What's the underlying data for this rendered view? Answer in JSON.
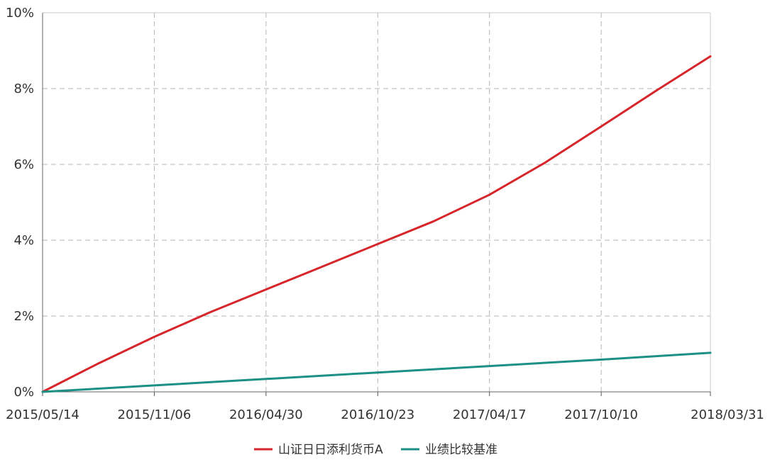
{
  "chart_data": {
    "type": "line",
    "title": "",
    "xlabel": "",
    "ylabel": "",
    "x_tick_labels": [
      "2015/05/14",
      "2015/11/06",
      "2016/04/30",
      "2016/10/23",
      "2017/04/17",
      "2017/10/10",
      "2018/03/31"
    ],
    "y_tick_labels": [
      "0%",
      "2%",
      "4%",
      "6%",
      "8%",
      "10%"
    ],
    "ylim": [
      0,
      10
    ],
    "y_unit": "%",
    "grid": true,
    "legend_position": "bottom",
    "series": [
      {
        "name": "山证日日添利货币A",
        "color": "#d7262b",
        "x": [
          "2015/05/14",
          "2015/08/10",
          "2015/11/06",
          "2016/02/02",
          "2016/04/30",
          "2016/07/27",
          "2016/10/23",
          "2017/01/19",
          "2017/04/17",
          "2017/07/14",
          "2017/10/10",
          "2018/01/05",
          "2018/03/31"
        ],
        "values": [
          0,
          0.75,
          1.45,
          2.1,
          2.7,
          3.3,
          3.9,
          4.5,
          5.2,
          6.05,
          7.0,
          7.95,
          8.85
        ]
      },
      {
        "name": "业绩比较基准",
        "color": "#1c8f86",
        "x": [
          "2015/05/14",
          "2015/11/06",
          "2016/04/30",
          "2016/10/23",
          "2017/04/17",
          "2017/10/10",
          "2018/03/31"
        ],
        "values": [
          0,
          0.17,
          0.34,
          0.51,
          0.68,
          0.85,
          1.03
        ]
      }
    ]
  }
}
